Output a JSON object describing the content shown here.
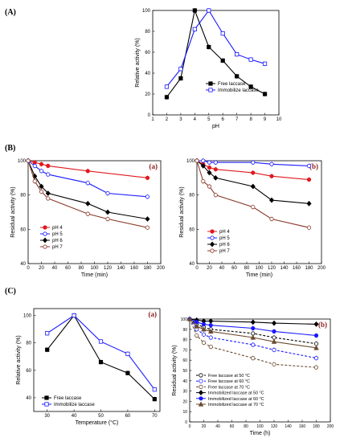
{
  "section_labels": [
    "(A)",
    "(B)",
    "(C)"
  ],
  "colors": {
    "free": "#000000",
    "immob": "#1a1aff",
    "ph4": "#e0191e",
    "ph5": "#1a1aff",
    "ph6": "#000000",
    "ph7": "#8b3a2b",
    "t50": "#000000",
    "t60": "#1a1aff",
    "t70": "#6b4a2e",
    "panel_label": "#8b1a1a"
  },
  "chart_data": [
    {
      "id": "A",
      "type": "line",
      "xlabel": "pH",
      "ylabel": "Relative activity (%)",
      "xlim": [
        1,
        10
      ],
      "ylim": [
        0,
        100
      ],
      "xticks": [
        1,
        2,
        3,
        4,
        5,
        6,
        7,
        8,
        9,
        10
      ],
      "yticks": [
        0,
        20,
        40,
        60,
        80,
        100
      ],
      "legend_position": "bottom-right",
      "series": [
        {
          "name": "Free laccase",
          "key": "free",
          "marker": "square-filled",
          "dash": false,
          "x": [
            2,
            3,
            4,
            5,
            6,
            7,
            8,
            9
          ],
          "y": [
            17,
            35,
            100,
            65,
            52,
            37,
            27,
            20
          ]
        },
        {
          "name": "Immobilize laccase",
          "key": "immob",
          "marker": "square-open",
          "dash": false,
          "x": [
            2,
            3,
            4,
            5,
            6,
            7,
            8,
            9
          ],
          "y": [
            27,
            44,
            82,
            100,
            78,
            58,
            53,
            49
          ]
        }
      ]
    },
    {
      "id": "B-a",
      "type": "line",
      "panel_label": "(a)",
      "xlabel": "Time (min)",
      "ylabel": "Residual activity (%)",
      "xlim": [
        0,
        200
      ],
      "ylim": [
        40,
        100
      ],
      "xticks": [
        0,
        20,
        40,
        60,
        80,
        100,
        120,
        140,
        160,
        180,
        200
      ],
      "yticks": [
        40,
        60,
        80,
        100
      ],
      "legend_position": "bottom-left",
      "series": [
        {
          "name": "pH 4",
          "key": "ph4",
          "marker": "circle-filled",
          "dash": false,
          "x": [
            0,
            10,
            20,
            30,
            90,
            180
          ],
          "y": [
            100,
            99,
            98,
            97,
            94,
            90
          ]
        },
        {
          "name": "pH 5",
          "key": "ph5",
          "marker": "circle-open",
          "dash": false,
          "x": [
            0,
            10,
            20,
            30,
            90,
            120,
            180
          ],
          "y": [
            100,
            97,
            94,
            92,
            87,
            81,
            79
          ]
        },
        {
          "name": "pH 6",
          "key": "ph6",
          "marker": "diamond-filled",
          "dash": false,
          "x": [
            0,
            10,
            20,
            30,
            90,
            120,
            180
          ],
          "y": [
            100,
            91,
            85,
            81,
            75,
            70,
            66
          ]
        },
        {
          "name": "pH 7",
          "key": "ph7",
          "marker": "circle-open",
          "dash": false,
          "x": [
            0,
            10,
            20,
            30,
            90,
            120,
            180
          ],
          "y": [
            100,
            88,
            82,
            78,
            69,
            66,
            61
          ]
        }
      ]
    },
    {
      "id": "B-b",
      "type": "line",
      "panel_label": "(b)",
      "xlabel": "Time (min)",
      "ylabel": "Residual activity (%)",
      "xlim": [
        0,
        200
      ],
      "ylim": [
        40,
        100
      ],
      "xticks": [
        0,
        20,
        40,
        60,
        80,
        100,
        120,
        140,
        160,
        180,
        200
      ],
      "yticks": [
        40,
        60,
        80,
        100
      ],
      "legend_position": "bottom-left",
      "series": [
        {
          "name": "pH 4",
          "key": "ph4",
          "marker": "circle-filled",
          "dash": false,
          "x": [
            0,
            10,
            20,
            30,
            90,
            120,
            180
          ],
          "y": [
            100,
            98,
            96,
            95,
            93,
            91,
            89
          ]
        },
        {
          "name": "pH 5",
          "key": "ph5",
          "marker": "circle-open",
          "dash": false,
          "x": [
            0,
            10,
            20,
            30,
            90,
            120,
            180
          ],
          "y": [
            100,
            100,
            99,
            99,
            99,
            98,
            97
          ]
        },
        {
          "name": "pH 6",
          "key": "ph6",
          "marker": "diamond-filled",
          "dash": false,
          "x": [
            0,
            10,
            20,
            30,
            90,
            120,
            180
          ],
          "y": [
            100,
            97,
            93,
            90,
            85,
            77,
            75
          ]
        },
        {
          "name": "pH 7",
          "key": "ph7",
          "marker": "circle-open",
          "dash": false,
          "x": [
            0,
            10,
            20,
            30,
            90,
            120,
            180
          ],
          "y": [
            100,
            88,
            85,
            80,
            73,
            66,
            61
          ]
        }
      ]
    },
    {
      "id": "C-a",
      "type": "line",
      "panel_label": "(a)",
      "xlabel": "Temperature (°C)",
      "ylabel": "Relative activity (%)",
      "xlim": [
        25,
        72
      ],
      "ylim": [
        30,
        105
      ],
      "xticks": [
        30,
        40,
        50,
        60,
        70
      ],
      "yticks": [
        40,
        60,
        80,
        100
      ],
      "legend_position": "bottom-left",
      "series": [
        {
          "name": "Free laccase",
          "key": "free",
          "marker": "square-filled",
          "dash": false,
          "x": [
            30,
            40,
            50,
            60,
            70
          ],
          "y": [
            75,
            100,
            66,
            58,
            39
          ]
        },
        {
          "name": "Immobilize laccase",
          "key": "immob",
          "marker": "square-open",
          "dash": false,
          "x": [
            30,
            40,
            50,
            60,
            70
          ],
          "y": [
            87,
            100,
            81,
            72,
            46
          ]
        }
      ]
    },
    {
      "id": "C-b",
      "type": "line",
      "panel_label": "(b)",
      "xlabel": "Time (h)",
      "ylabel": "Residual activity (%)",
      "xlim": [
        0,
        200
      ],
      "ylim": [
        0,
        100
      ],
      "xticks": [
        0,
        20,
        40,
        60,
        80,
        100,
        120,
        140,
        160,
        180,
        200
      ],
      "yticks": [
        0,
        10,
        20,
        30,
        40,
        50,
        60,
        70,
        80,
        90,
        100
      ],
      "legend_position": "bottom-left",
      "series": [
        {
          "name": "Free laccase at 50 °C",
          "key": "t50",
          "marker": "circle-open",
          "dash": true,
          "x": [
            0,
            10,
            20,
            30,
            90,
            120,
            180
          ],
          "y": [
            100,
            95,
            92,
            90,
            86,
            82,
            76
          ]
        },
        {
          "name": "Free laccase at 60 °C",
          "key": "t60",
          "marker": "circle-open",
          "dash": true,
          "x": [
            0,
            10,
            20,
            30,
            90,
            120,
            180
          ],
          "y": [
            100,
            90,
            85,
            82,
            75,
            70,
            62
          ]
        },
        {
          "name": "Free laccase at 70 °C",
          "key": "t70",
          "marker": "circle-open",
          "dash": true,
          "x": [
            0,
            10,
            20,
            30,
            90,
            120,
            180
          ],
          "y": [
            100,
            84,
            77,
            73,
            62,
            56,
            53
          ]
        },
        {
          "name": "Immobilized laccase at 50 °C",
          "key": "t50",
          "marker": "diamond-filled",
          "dash": false,
          "x": [
            0,
            10,
            20,
            30,
            90,
            120,
            180
          ],
          "y": [
            100,
            99,
            98,
            98,
            97,
            96,
            95
          ]
        },
        {
          "name": "Immobilized laccase at 60 °C",
          "key": "t60",
          "marker": "circle-filled",
          "dash": false,
          "x": [
            0,
            10,
            20,
            30,
            90,
            120,
            180
          ],
          "y": [
            100,
            97,
            95,
            94,
            91,
            88,
            84
          ]
        },
        {
          "name": "Immobilized laccase at 70 °C",
          "key": "t70",
          "marker": "triangle-filled",
          "dash": false,
          "x": [
            0,
            10,
            20,
            30,
            90,
            120,
            180
          ],
          "y": [
            100,
            93,
            90,
            88,
            82,
            78,
            72
          ]
        }
      ]
    }
  ]
}
